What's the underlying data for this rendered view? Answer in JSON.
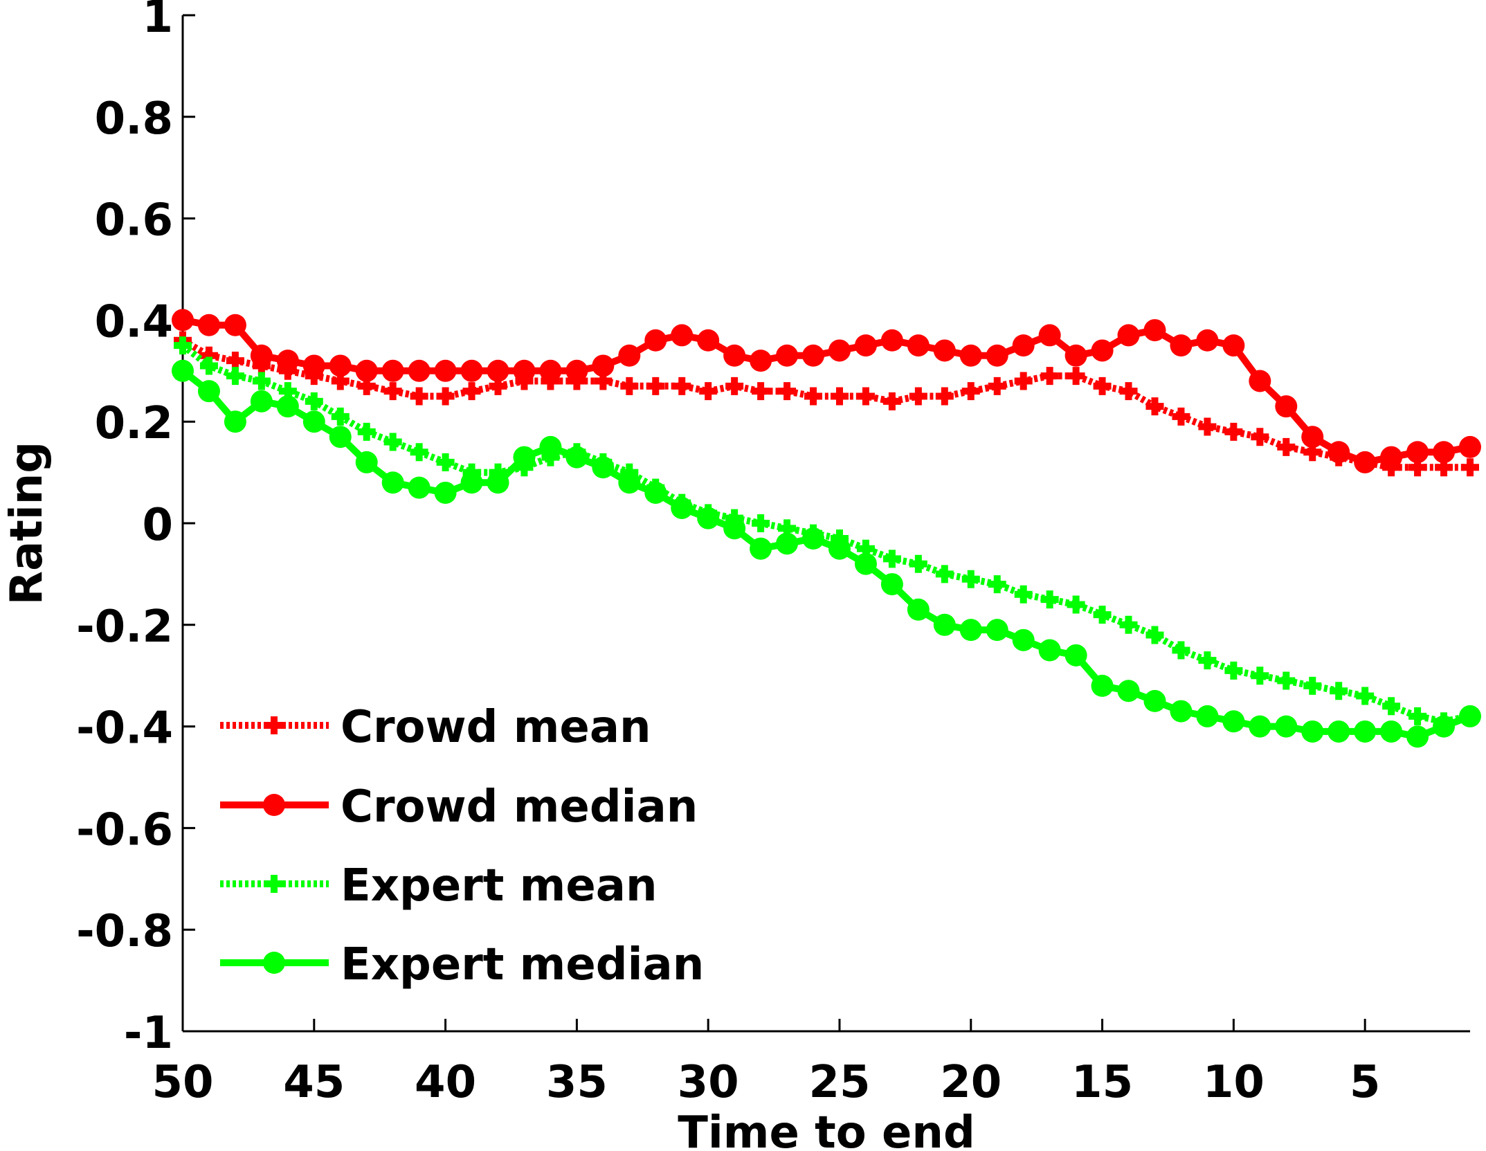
{
  "chart_data": {
    "type": "line",
    "title": "",
    "xlabel": "Time to end",
    "ylabel": "Rating",
    "x_reversed": true,
    "xlim": [
      50,
      1
    ],
    "ylim": [
      -1,
      1
    ],
    "x_ticks": [
      50,
      45,
      40,
      35,
      30,
      25,
      20,
      15,
      10,
      5
    ],
    "x_tick_labels": [
      "50",
      "45",
      "40",
      "35",
      "30",
      "25",
      "20",
      "15",
      "10",
      "5"
    ],
    "y_ticks": [
      -1,
      -0.8,
      -0.6,
      -0.4,
      -0.2,
      0,
      0.2,
      0.4,
      0.6,
      0.8,
      1
    ],
    "y_tick_labels": [
      "-1",
      "-0.8",
      "-0.6",
      "-0.4",
      "-0.2",
      "0",
      "0.2",
      "0.4",
      "0.6",
      "0.8",
      "1"
    ],
    "legend_position": "bottom-left",
    "x": [
      50,
      49,
      48,
      47,
      46,
      45,
      44,
      43,
      42,
      41,
      40,
      39,
      38,
      37,
      36,
      35,
      34,
      33,
      32,
      31,
      30,
      29,
      28,
      27,
      26,
      25,
      24,
      23,
      22,
      21,
      20,
      19,
      18,
      17,
      16,
      15,
      14,
      13,
      12,
      11,
      10,
      9,
      8,
      7,
      6,
      5,
      4,
      3,
      2,
      1
    ],
    "series": [
      {
        "name": "Crowd mean",
        "color": "#ff0000",
        "line_style": "dotted",
        "marker": "plus",
        "values": [
          0.36,
          0.33,
          0.32,
          0.31,
          0.3,
          0.29,
          0.28,
          0.27,
          0.26,
          0.25,
          0.25,
          0.26,
          0.27,
          0.28,
          0.28,
          0.28,
          0.28,
          0.27,
          0.27,
          0.27,
          0.26,
          0.27,
          0.26,
          0.26,
          0.25,
          0.25,
          0.25,
          0.24,
          0.25,
          0.25,
          0.26,
          0.27,
          0.28,
          0.29,
          0.29,
          0.27,
          0.26,
          0.23,
          0.21,
          0.19,
          0.18,
          0.17,
          0.15,
          0.14,
          0.13,
          0.12,
          0.11,
          0.11,
          0.11,
          0.11
        ]
      },
      {
        "name": "Crowd median",
        "color": "#ff0000",
        "line_style": "solid",
        "marker": "circle",
        "values": [
          0.4,
          0.39,
          0.39,
          0.33,
          0.32,
          0.31,
          0.31,
          0.3,
          0.3,
          0.3,
          0.3,
          0.3,
          0.3,
          0.3,
          0.3,
          0.3,
          0.31,
          0.33,
          0.36,
          0.37,
          0.36,
          0.33,
          0.32,
          0.33,
          0.33,
          0.34,
          0.35,
          0.36,
          0.35,
          0.34,
          0.33,
          0.33,
          0.35,
          0.37,
          0.33,
          0.34,
          0.37,
          0.38,
          0.35,
          0.36,
          0.35,
          0.28,
          0.23,
          0.17,
          0.14,
          0.12,
          0.13,
          0.14,
          0.14,
          0.15
        ]
      },
      {
        "name": "Expert mean",
        "color": "#00ff00",
        "line_style": "dotted",
        "marker": "plus",
        "values": [
          0.35,
          0.31,
          0.29,
          0.28,
          0.26,
          0.24,
          0.21,
          0.18,
          0.16,
          0.14,
          0.12,
          0.1,
          0.1,
          0.11,
          0.13,
          0.14,
          0.12,
          0.1,
          0.07,
          0.04,
          0.02,
          0.01,
          0.0,
          -0.01,
          -0.02,
          -0.03,
          -0.05,
          -0.07,
          -0.08,
          -0.1,
          -0.11,
          -0.12,
          -0.14,
          -0.15,
          -0.16,
          -0.18,
          -0.2,
          -0.22,
          -0.25,
          -0.27,
          -0.29,
          -0.3,
          -0.31,
          -0.32,
          -0.33,
          -0.34,
          -0.36,
          -0.38,
          -0.39,
          -0.38
        ]
      },
      {
        "name": "Expert median",
        "color": "#00ff00",
        "line_style": "solid",
        "marker": "circle",
        "values": [
          0.3,
          0.26,
          0.2,
          0.24,
          0.23,
          0.2,
          0.17,
          0.12,
          0.08,
          0.07,
          0.06,
          0.08,
          0.08,
          0.13,
          0.15,
          0.13,
          0.11,
          0.08,
          0.06,
          0.03,
          0.01,
          -0.01,
          -0.05,
          -0.04,
          -0.03,
          -0.05,
          -0.08,
          -0.12,
          -0.17,
          -0.2,
          -0.21,
          -0.21,
          -0.23,
          -0.25,
          -0.26,
          -0.32,
          -0.33,
          -0.35,
          -0.37,
          -0.38,
          -0.39,
          -0.4,
          -0.4,
          -0.41,
          -0.41,
          -0.41,
          -0.41,
          -0.42,
          -0.4,
          -0.38
        ]
      }
    ]
  }
}
